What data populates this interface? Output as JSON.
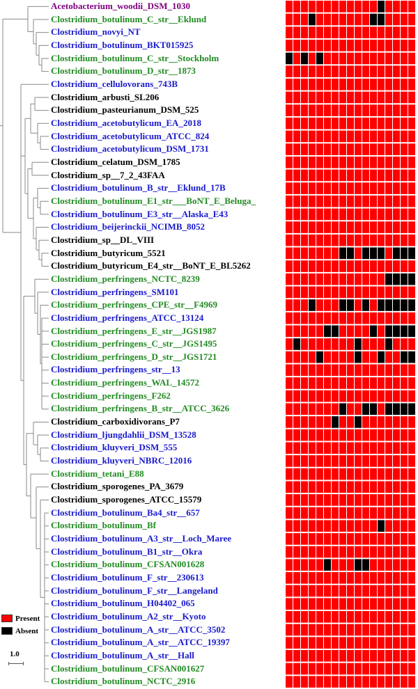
{
  "colors": {
    "present": "#ff0000",
    "absent": "#000000",
    "cell_border": "#ffffff",
    "tree_line": "#888888",
    "label_purple": "#800080",
    "label_green": "#228b22",
    "label_blue": "#1a1acd",
    "label_black": "#000000"
  },
  "legend": {
    "present_label": "Present",
    "absent_label": "Absent"
  },
  "scale_label": "1.0",
  "heatmap_columns": 17,
  "taxa": [
    {
      "name": "Acetobacterium_woodii_DSM_1030",
      "color": "purple",
      "absent_columns": [
        12
      ]
    },
    {
      "name": "Clostridium_botulinum_C_str__Eklund",
      "color": "green",
      "absent_columns": [
        3,
        11,
        12
      ]
    },
    {
      "name": "Clostridium_novyi_NT",
      "color": "blue",
      "absent_columns": []
    },
    {
      "name": "Clostridium_botulinum_BKT015925",
      "color": "blue",
      "absent_columns": []
    },
    {
      "name": "Clostridium_botulinum_C_str__Stockholm",
      "color": "green",
      "absent_columns": [
        0,
        2,
        4
      ]
    },
    {
      "name": "Clostridium_botulinum_D_str__1873",
      "color": "green",
      "absent_columns": []
    },
    {
      "name": "Clostridium_cellulovorans_743B",
      "color": "blue",
      "absent_columns": []
    },
    {
      "name": "Clostridium_arbusti_SL206",
      "color": "black",
      "absent_columns": []
    },
    {
      "name": "Clostridium_pasteurianum_DSM_525",
      "color": "black",
      "absent_columns": []
    },
    {
      "name": "Clostridium_acetobutylicum_EA_2018",
      "color": "blue",
      "absent_columns": []
    },
    {
      "name": "Clostridium_acetobutylicum_ATCC_824",
      "color": "blue",
      "absent_columns": []
    },
    {
      "name": "Clostridium_acetobutylicum_DSM_1731",
      "color": "blue",
      "absent_columns": []
    },
    {
      "name": "Clostridium_celatum_DSM_1785",
      "color": "black",
      "absent_columns": []
    },
    {
      "name": "Clostridium_sp__7_2_43FAA",
      "color": "black",
      "absent_columns": []
    },
    {
      "name": "Clostridium_botulinum_B_str__Eklund_17B",
      "color": "blue",
      "absent_columns": []
    },
    {
      "name": "Clostridium_botulinum_E1_str___BoNT_E_Beluga_",
      "color": "green",
      "absent_columns": []
    },
    {
      "name": "Clostridium_botulinum_E3_str__Alaska_E43",
      "color": "blue",
      "absent_columns": []
    },
    {
      "name": "Clostridium_beijerinckii_NCIMB_8052",
      "color": "blue",
      "absent_columns": []
    },
    {
      "name": "Clostridium_sp__DL_VIII",
      "color": "black",
      "absent_columns": []
    },
    {
      "name": "Clostridium_butyricum_5521",
      "color": "black",
      "absent_columns": [
        7,
        8,
        10,
        11,
        12,
        14,
        15,
        16
      ]
    },
    {
      "name": "Clostridium_butyricum_E4_str__BoNT_E_BL5262",
      "color": "black",
      "absent_columns": []
    },
    {
      "name": "Clostridium_perfringens_NCTC_8239",
      "color": "green",
      "absent_columns": [
        13,
        14,
        15,
        16
      ]
    },
    {
      "name": "Clostridium_perfringens_SM101",
      "color": "blue",
      "absent_columns": []
    },
    {
      "name": "Clostridium_perfringens_CPE_str__F4969",
      "color": "green",
      "absent_columns": [
        3,
        7,
        8,
        10,
        12,
        13,
        14,
        15,
        16
      ]
    },
    {
      "name": "Clostridium_perfringens_ATCC_13124",
      "color": "blue",
      "absent_columns": []
    },
    {
      "name": "Clostridium_perfringens_E_str__JGS1987",
      "color": "green",
      "absent_columns": [
        5,
        6,
        11,
        13,
        14,
        15,
        16
      ]
    },
    {
      "name": "Clostridium_perfringens_C_str__JGS1495",
      "color": "green",
      "absent_columns": [
        1,
        9,
        13
      ]
    },
    {
      "name": "Clostridium_perfringens_D_str__JGS1721",
      "color": "green",
      "absent_columns": [
        4,
        9,
        12,
        15,
        16
      ]
    },
    {
      "name": "Clostridium_perfringens_str__13",
      "color": "blue",
      "absent_columns": []
    },
    {
      "name": "Clostridium_perfringens_WAL_14572",
      "color": "green",
      "absent_columns": []
    },
    {
      "name": "Clostridium_perfringens_F262",
      "color": "green",
      "absent_columns": []
    },
    {
      "name": "Clostridium_perfringens_B_str__ATCC_3626",
      "color": "green",
      "absent_columns": [
        7,
        10,
        11,
        13,
        14,
        15,
        16
      ]
    },
    {
      "name": "Clostridium_carboxidivorans_P7",
      "color": "black",
      "absent_columns": [
        6,
        9
      ]
    },
    {
      "name": "Clostridium_ljungdahlii_DSM_13528",
      "color": "blue",
      "absent_columns": []
    },
    {
      "name": "Clostridium_kluyveri_DSM_555",
      "color": "blue",
      "absent_columns": []
    },
    {
      "name": "Clostridium_kluyveri_NBRC_12016",
      "color": "blue",
      "absent_columns": []
    },
    {
      "name": "Clostridium_tetani_E88",
      "color": "green",
      "absent_columns": []
    },
    {
      "name": "Clostridium_sporogenes_PA_3679",
      "color": "black",
      "absent_columns": []
    },
    {
      "name": "Clostridium_sporogenes_ATCC_15579",
      "color": "black",
      "absent_columns": []
    },
    {
      "name": "Clostridium_botulinum_Ba4_str__657",
      "color": "blue",
      "absent_columns": []
    },
    {
      "name": "Clostridium_botulinum_Bf",
      "color": "green",
      "absent_columns": [
        12
      ]
    },
    {
      "name": "Clostridium_botulinum_A3_str__Loch_Maree",
      "color": "blue",
      "absent_columns": []
    },
    {
      "name": "Clostridium_botulinum_B1_str__Okra",
      "color": "blue",
      "absent_columns": []
    },
    {
      "name": "Clostridium_botulinum_CFSAN001628",
      "color": "green",
      "absent_columns": [
        5,
        9,
        10
      ]
    },
    {
      "name": "Clostridium_botulinum_F_str__230613",
      "color": "blue",
      "absent_columns": []
    },
    {
      "name": "Clostridium_botulinum_F_str__Langeland",
      "color": "blue",
      "absent_columns": []
    },
    {
      "name": "Clostridium_botulinum_H04402_065",
      "color": "blue",
      "absent_columns": []
    },
    {
      "name": "Clostridium_botulinum_A2_str__Kyoto",
      "color": "blue",
      "absent_columns": []
    },
    {
      "name": "Clostridium_botulinum_A_str__ATCC_3502",
      "color": "blue",
      "absent_columns": []
    },
    {
      "name": "Clostridium_botulinum_A_str__ATCC_19397",
      "color": "blue",
      "absent_columns": []
    },
    {
      "name": "Clostridium_botulinum_A_str__Hall",
      "color": "blue",
      "absent_columns": []
    },
    {
      "name": "Clostridium_botulinum_CFSAN001627",
      "color": "green",
      "absent_columns": []
    },
    {
      "name": "Clostridium_botulinum_NCTC_2916",
      "color": "green",
      "absent_columns": []
    }
  ]
}
